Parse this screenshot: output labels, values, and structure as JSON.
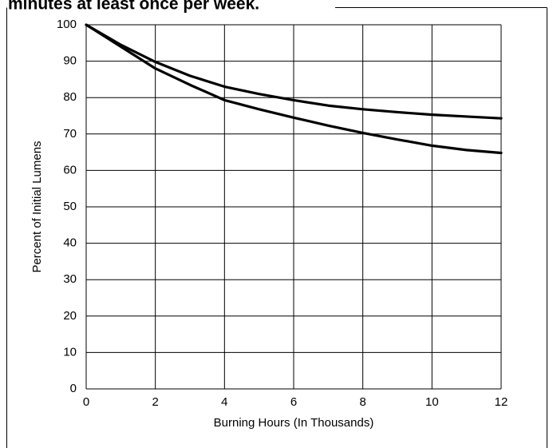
{
  "chart_data": {
    "type": "line",
    "title": "minutes at least once per week.",
    "x_label": "Burning Hours (In Thousands)",
    "y_label": "Percent of Initial Lumens",
    "x": [
      0,
      1,
      2,
      3,
      4,
      5,
      6,
      7,
      8,
      9,
      10,
      11,
      12
    ],
    "series": [
      {
        "color": "#000000",
        "values": [
          100,
          94.5,
          89.8,
          86,
          83,
          81,
          79.3,
          77.8,
          76.8,
          76,
          75.3,
          74.8,
          74.3
        ]
      },
      {
        "color": "#000000",
        "values": [
          100,
          94,
          88,
          83.5,
          79.3,
          76.8,
          74.5,
          72.3,
          70.3,
          68.5,
          66.8,
          65.6,
          64.8
        ]
      }
    ],
    "xlim": [
      0,
      12
    ],
    "xticks": [
      0,
      2,
      4,
      6,
      8,
      10,
      12
    ],
    "ylim": [
      0,
      100
    ],
    "yticks": [
      0,
      10,
      20,
      30,
      40,
      50,
      60,
      70,
      80,
      90,
      100
    ],
    "grid": true
  }
}
